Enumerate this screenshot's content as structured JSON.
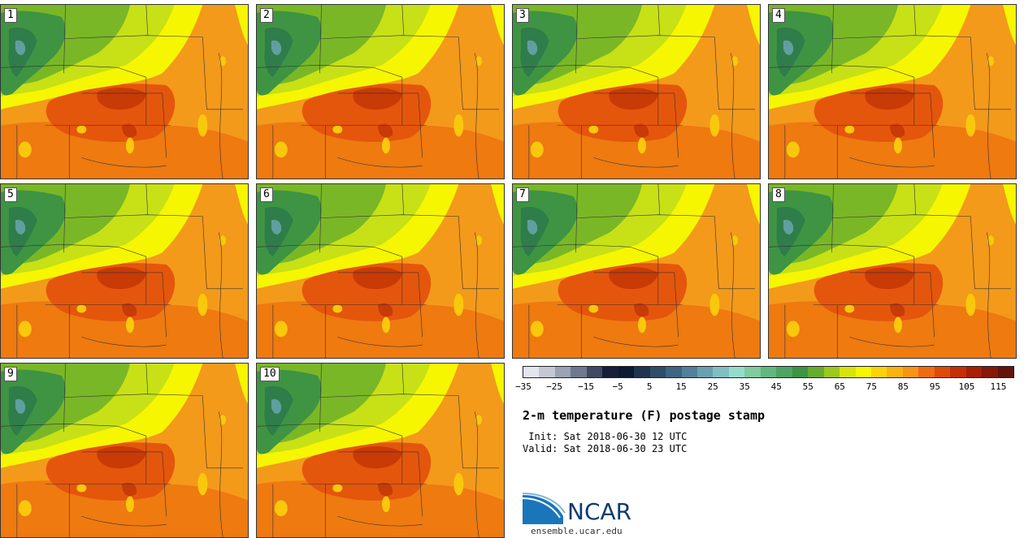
{
  "panels": [
    {
      "label": "1"
    },
    {
      "label": "2"
    },
    {
      "label": "3"
    },
    {
      "label": "4"
    },
    {
      "label": "5"
    },
    {
      "label": "6"
    },
    {
      "label": "7"
    },
    {
      "label": "8"
    },
    {
      "label": "9"
    },
    {
      "label": "10"
    }
  ],
  "colorbar": {
    "colors": [
      "#e3e6ee",
      "#c3c8d4",
      "#9aa2b4",
      "#6e788f",
      "#3f4b63",
      "#16203a",
      "#0c1a33",
      "#1d3550",
      "#2e4d69",
      "#3e6582",
      "#52809a",
      "#68a0b0",
      "#7fbfc2",
      "#95dccd",
      "#7fcc9e",
      "#62b880",
      "#4fa462",
      "#3e9443",
      "#65ac2e",
      "#9ec81c",
      "#d8e40f",
      "#f6f600",
      "#fbd20a",
      "#f9b30f",
      "#f79515",
      "#ef6c0f",
      "#de4a09",
      "#c42f06",
      "#a71f05",
      "#86190a",
      "#62150b"
    ],
    "tick_labels": [
      "−35",
      "−25",
      "−15",
      "−5",
      "5",
      "15",
      "25",
      "35",
      "45",
      "55",
      "65",
      "75",
      "85",
      "95",
      "105",
      "115"
    ]
  },
  "title": "2-m temperature (F) postage stamp",
  "init": " Init: Sat 2018-06-30 12 UTC",
  "valid": "Valid: Sat 2018-06-30 23 UTC",
  "logo_text": "NCAR",
  "url": "ensemble.ucar.edu"
}
